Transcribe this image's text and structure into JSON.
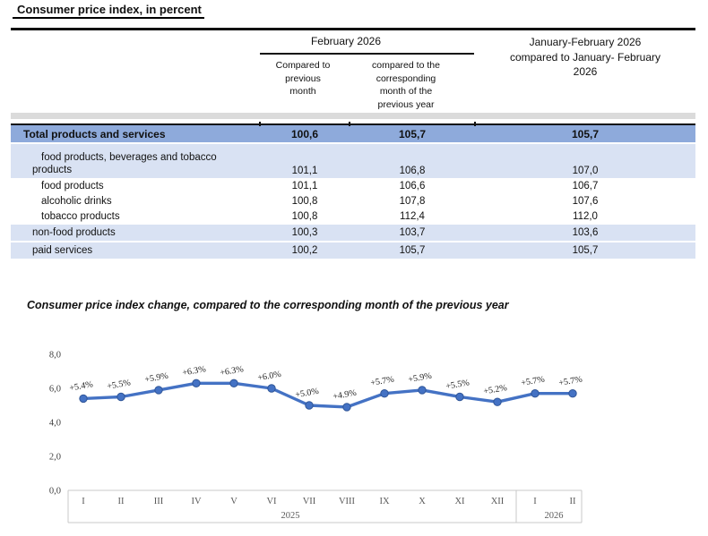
{
  "title": "Consumer price index, in percent",
  "table": {
    "group_header": "February 2026",
    "col2_header": "Compared to\nprevious\nmonth",
    "col3_header": "compared to the\ncorresponding\nmonth of the\nprevious year",
    "col4_header": "January-February 2026\ncompared to January- February\n2026",
    "rows": [
      {
        "label": "Total products and services",
        "values": [
          "100,6",
          "105,7",
          "105,7"
        ]
      },
      {
        "label": "food products, beverages and tobacco\nproducts",
        "values": [
          "101,1",
          "106,8",
          "107,0"
        ]
      },
      {
        "label": "food products",
        "values": [
          "101,1",
          "106,6",
          "106,7"
        ]
      },
      {
        "label": "alcoholic drinks",
        "values": [
          "100,8",
          "107,8",
          "107,6"
        ]
      },
      {
        "label": "tobacco products",
        "values": [
          "100,8",
          "112,4",
          "112,0"
        ]
      },
      {
        "label": "non-food products",
        "values": [
          "100,3",
          "103,7",
          "103,6"
        ]
      },
      {
        "label": "paid services",
        "values": [
          "100,2",
          "105,7",
          "105,7"
        ]
      }
    ]
  },
  "chart": {
    "title": "Consumer price index change, compared to the corresponding month of the previous year"
  },
  "chart_data": {
    "type": "line",
    "title": "Consumer price index change, compared to the corresponding month of the previous year",
    "categories": [
      "I",
      "II",
      "III",
      "IV",
      "V",
      "VI",
      "VII",
      "VIII",
      "IX",
      "X",
      "XI",
      "XII",
      "I",
      "II"
    ],
    "year_groups": [
      {
        "label": "2025",
        "from": 0,
        "to": 11
      },
      {
        "label": "2026",
        "from": 12,
        "to": 13
      }
    ],
    "values": [
      5.4,
      5.5,
      5.9,
      6.3,
      6.3,
      6.0,
      5.0,
      4.9,
      5.7,
      5.9,
      5.5,
      5.2,
      5.7,
      5.7
    ],
    "point_labels": [
      "+5.4%",
      "+5.5%",
      "+5.9%",
      "+6.3%",
      "+6.3%",
      "+6.0%",
      "+5.0%",
      "+4.9%",
      "+5.7%",
      "+5.9%",
      "+5.5%",
      "+5.2%",
      "+5.7%",
      "+5.7%"
    ],
    "yticks": [
      {
        "label": "8,0",
        "value": 8
      },
      {
        "label": "6,0",
        "value": 6
      },
      {
        "label": "4,0",
        "value": 4
      },
      {
        "label": "2,0",
        "value": 2
      },
      {
        "label": "0,0",
        "value": 0
      }
    ],
    "ylim": [
      0,
      8.8
    ],
    "grid": false,
    "legend": false,
    "line_color": "#4472C4"
  },
  "colors": {
    "total_row_bg": "#8EAADB",
    "group_row_bg": "#D9E2F3",
    "spacer_band": "#DBDBDB",
    "chart_line": "#4472C4"
  }
}
